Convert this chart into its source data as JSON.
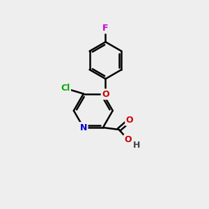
{
  "bg_color": "#eeeeee",
  "atom_colors": {
    "C": "#000000",
    "N": "#0000cc",
    "O": "#cc0000",
    "Cl": "#00aa00",
    "F": "#cc00cc",
    "H": "#444444"
  },
  "bond_color": "#000000",
  "figsize": [
    3.0,
    3.0
  ],
  "dpi": 100,
  "xlim": [
    0,
    10
  ],
  "ylim": [
    0,
    10
  ]
}
